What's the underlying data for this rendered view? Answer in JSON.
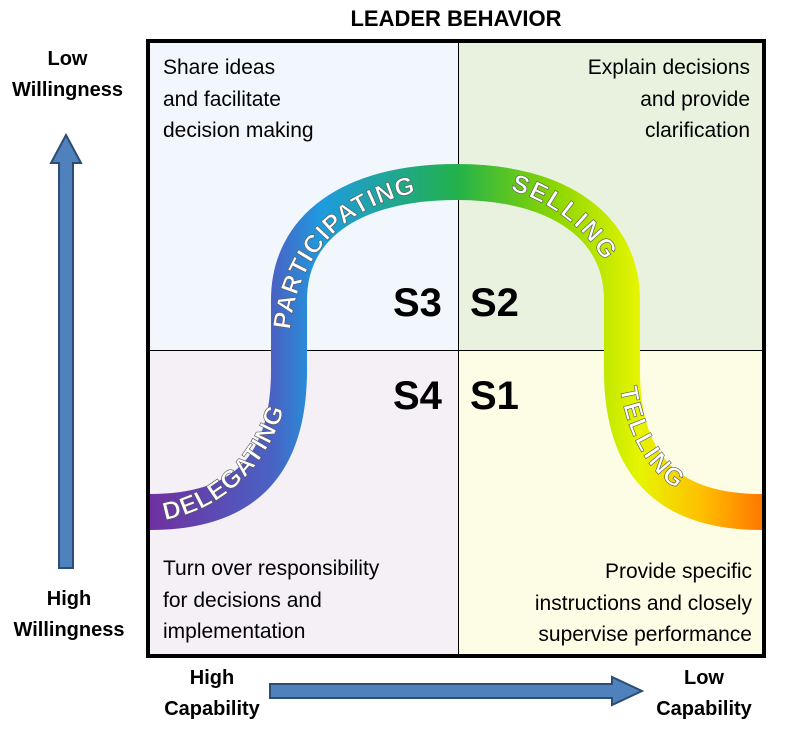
{
  "title": "LEADER BEHAVIOR",
  "y_axis": {
    "top_label": [
      "Low",
      "Willingness"
    ],
    "bottom_label": [
      "High",
      "Willingness"
    ]
  },
  "x_axis": {
    "left_label": [
      "High",
      "Capability"
    ],
    "right_label": [
      "Low",
      "Capability"
    ]
  },
  "quadrants": {
    "top_left": "Share ideas\nand facilitate\ndecision making",
    "top_right": "Explain decisions\nand provide\nclarification",
    "bottom_left": "Turn over responsibility\nfor decisions  and\nimplementation",
    "bottom_right": "Provide specific\ninstructions and closely\nsupervise performance"
  },
  "stages": {
    "s1": "S1",
    "s2": "S2",
    "s3": "S3",
    "s4": "S4"
  },
  "curve_labels": {
    "delegating": "DELEGATING",
    "participating": "PARTICIPATING",
    "selling": "SELLING",
    "telling": "TELLING"
  },
  "colors": {
    "arrow_fill": "#4f81bd",
    "arrow_stroke": "#2c4d75",
    "curve_purple": "#7030a0",
    "curve_blue": "#1e9be0",
    "curve_green": "#22b14c",
    "curve_yellow": "#e6f500",
    "curve_orange": "#ff7800"
  }
}
